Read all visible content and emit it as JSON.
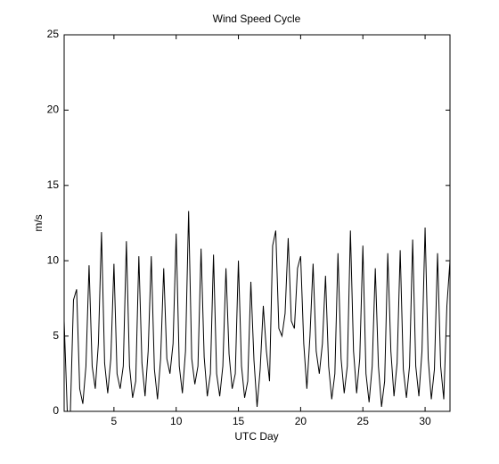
{
  "chart_data": {
    "type": "line",
    "title": "Wind Speed Cycle",
    "x_label": "UTC Day",
    "y_label": "m/s",
    "xlim": [
      1,
      32
    ],
    "xticks": [
      5,
      10,
      15,
      20,
      25,
      30
    ],
    "ylim": [
      0,
      25
    ],
    "yticks": [
      0,
      5,
      10,
      15,
      20,
      25
    ],
    "color": "#000000",
    "x": [
      1,
      1.25,
      1.5,
      1.75,
      2,
      2.25,
      2.5,
      2.75,
      3,
      3.25,
      3.5,
      3.75,
      4,
      4.25,
      4.5,
      4.75,
      5,
      5.25,
      5.5,
      5.75,
      6,
      6.25,
      6.5,
      6.75,
      7,
      7.25,
      7.5,
      7.75,
      8,
      8.25,
      8.5,
      8.75,
      9,
      9.25,
      9.5,
      9.75,
      10,
      10.25,
      10.5,
      10.75,
      11,
      11.25,
      11.5,
      11.75,
      12,
      12.25,
      12.5,
      12.75,
      13,
      13.25,
      13.5,
      13.75,
      14,
      14.25,
      14.5,
      14.75,
      15,
      15.25,
      15.5,
      15.75,
      16,
      16.25,
      16.5,
      16.75,
      17,
      17.25,
      17.5,
      17.75,
      18,
      18.25,
      18.5,
      18.75,
      19,
      19.25,
      19.5,
      19.75,
      20,
      20.25,
      20.5,
      20.75,
      21,
      21.25,
      21.5,
      21.75,
      22,
      22.25,
      22.5,
      22.75,
      23,
      23.25,
      23.5,
      23.75,
      24,
      24.25,
      24.5,
      24.75,
      25,
      25.25,
      25.5,
      25.75,
      26,
      26.25,
      26.5,
      26.75,
      27,
      27.25,
      27.5,
      27.75,
      28,
      28.25,
      28.5,
      28.75,
      29,
      29.25,
      29.5,
      29.75,
      30,
      30.25,
      30.5,
      30.75,
      31,
      31.25,
      31.5,
      31.75,
      32
    ],
    "values": [
      6,
      0,
      0,
      7.4,
      8.1,
      1.5,
      0.5,
      3,
      9.7,
      3,
      1.5,
      4.5,
      11.9,
      3.2,
      1.2,
      3.5,
      9.8,
      2.5,
      1.5,
      3,
      11.3,
      3,
      0.9,
      2,
      10.3,
      3.2,
      1,
      4,
      10.3,
      2.8,
      0.8,
      3.5,
      9.5,
      3.5,
      2.5,
      4.5,
      11.8,
      3,
      1.2,
      4,
      13.3,
      3.5,
      1.8,
      3,
      10.8,
      3.6,
      1,
      2.5,
      10.4,
      2.5,
      1,
      3,
      9.5,
      3.8,
      1.5,
      2.5,
      10,
      3,
      0.9,
      2,
      8.6,
      3.4,
      0.3,
      2.8,
      7,
      4,
      2,
      11,
      12,
      5.5,
      5,
      6.5,
      11.5,
      6,
      5.5,
      9.5,
      10.3,
      4.5,
      1.5,
      5,
      9.8,
      4,
      2.5,
      4.5,
      9,
      3,
      0.8,
      2.5,
      10.5,
      3.5,
      1.2,
      3,
      12,
      4,
      1.2,
      3.5,
      11,
      2.5,
      0.6,
      3,
      9.5,
      3,
      0.3,
      2,
      10.5,
      4,
      1,
      3.2,
      10.7,
      2.8,
      0.9,
      3,
      11.4,
      3,
      1,
      4,
      12.2,
      3.5,
      0.8,
      2.8,
      10.5,
      3,
      0.8,
      7,
      10
    ]
  }
}
